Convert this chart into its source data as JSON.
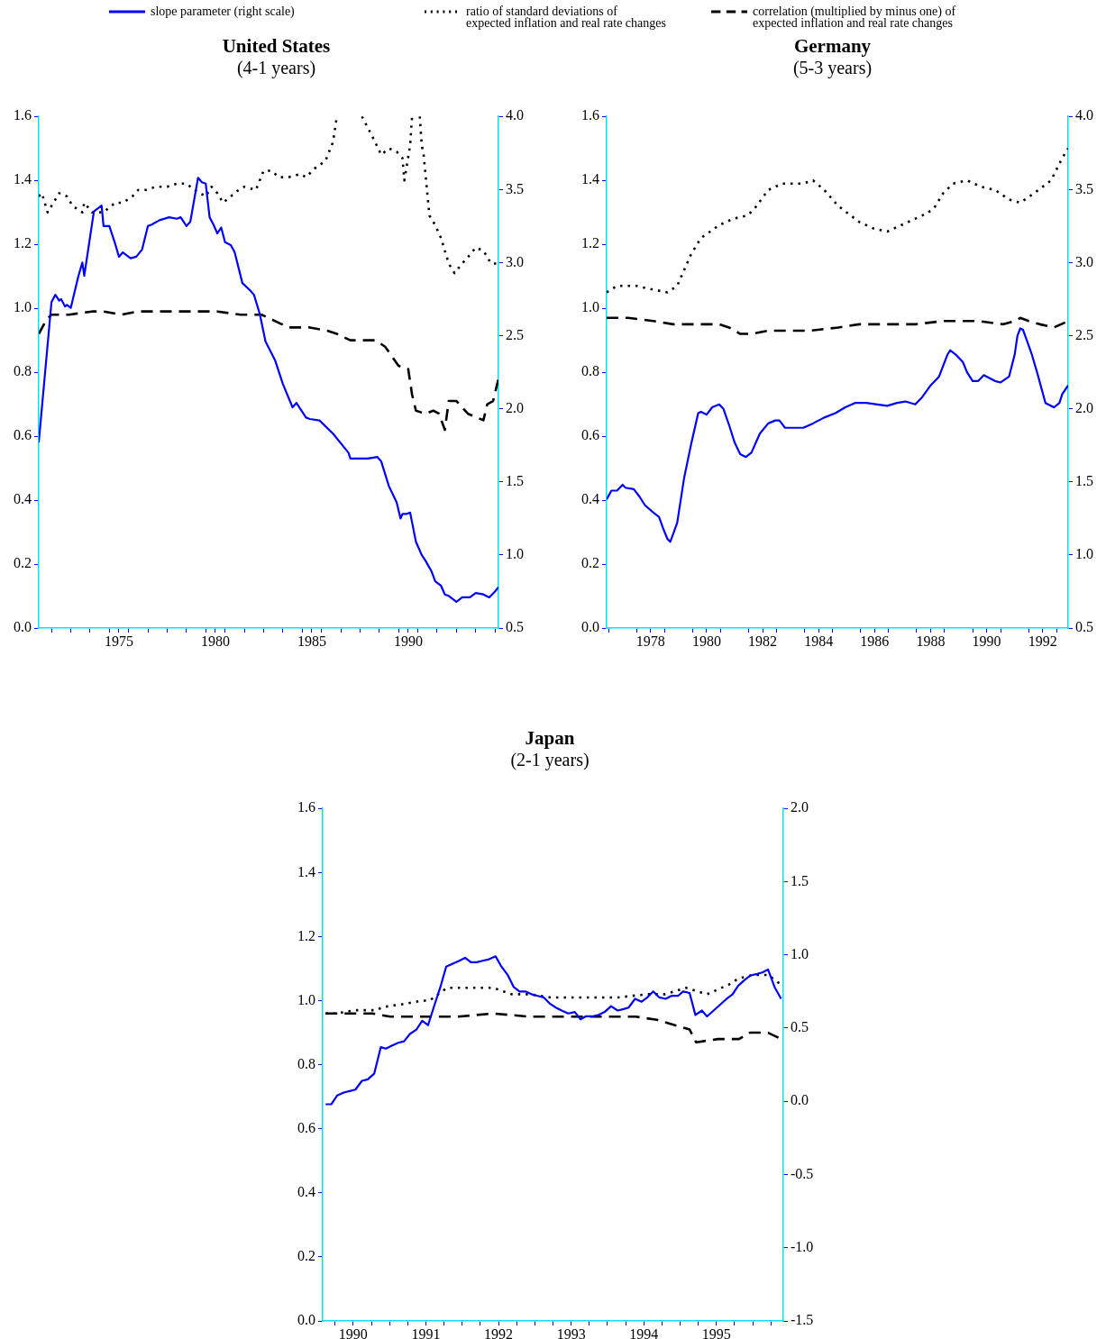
{
  "chart_data": [
    {
      "type": "line",
      "title": "United States",
      "subtitle": "(4-1 years)",
      "legend": "top",
      "marker": "none",
      "xlim": [
        1971.34,
        1995.18
      ],
      "xticks": [
        {
          "value": 1972,
          "label": null
        },
        {
          "value": 1973,
          "label": null
        },
        {
          "value": 1974,
          "label": null
        },
        {
          "value": 1975,
          "label": null
        },
        {
          "value": 1975.5,
          "label": "1975"
        },
        {
          "value": 1976,
          "label": null
        },
        {
          "value": 1977,
          "label": null
        },
        {
          "value": 1978,
          "label": null
        },
        {
          "value": 1979,
          "label": null
        },
        {
          "value": 1980,
          "label": null
        },
        {
          "value": 1980.5,
          "label": "1980"
        },
        {
          "value": 1981,
          "label": null
        },
        {
          "value": 1982,
          "label": null
        },
        {
          "value": 1983,
          "label": null
        },
        {
          "value": 1984,
          "label": null
        },
        {
          "value": 1985,
          "label": null
        },
        {
          "value": 1985.5,
          "label": "1985"
        },
        {
          "value": 1986,
          "label": null
        },
        {
          "value": 1987,
          "label": null
        },
        {
          "value": 1988,
          "label": null
        },
        {
          "value": 1989,
          "label": null
        },
        {
          "value": 1990,
          "label": null
        },
        {
          "value": 1990.5,
          "label": "1990"
        },
        {
          "value": 1991,
          "label": null
        },
        {
          "value": 1992,
          "label": null
        },
        {
          "value": 1993,
          "label": null
        },
        {
          "value": 1994,
          "label": null
        },
        {
          "value": 1995,
          "label": null
        }
      ],
      "ylim": [
        0,
        1.6
      ],
      "yticks": [
        {
          "value": 0,
          "label": "0.0"
        },
        {
          "value": 0.2,
          "label": "0.2"
        },
        {
          "value": 0.4,
          "label": "0.4"
        },
        {
          "value": 0.6,
          "label": "0.6"
        },
        {
          "value": 0.8,
          "label": "0.8"
        },
        {
          "value": 1,
          "label": "1.0"
        },
        {
          "value": 1.2,
          "label": "1.2"
        },
        {
          "value": 1.4,
          "label": "1.4"
        },
        {
          "value": 1.6,
          "label": "1.6"
        }
      ],
      "y2lim": [
        0.5,
        4
      ],
      "y2ticks": [
        {
          "value": 0.5,
          "label": "0.5"
        },
        {
          "value": 1,
          "label": "1.0"
        },
        {
          "value": 1.5,
          "label": "1.5"
        },
        {
          "value": 2,
          "label": "2.0"
        },
        {
          "value": 2.5,
          "label": "2.5"
        },
        {
          "value": 3,
          "label": "3.0"
        },
        {
          "value": 3.5,
          "label": "3.5"
        },
        {
          "value": 4,
          "label": "4.0"
        }
      ],
      "series": [
        {
          "name": "slope parameter (right scale)",
          "color": "#0000ff",
          "line_style": "solid",
          "axis": "y2",
          "x": [
            1971.34,
            1972.0,
            1972.2,
            1972.4,
            1972.5,
            1972.7,
            1972.8,
            1973.0,
            1973.4,
            1973.6,
            1973.7,
            1974.2,
            1974.6,
            1974.7,
            1975.0,
            1975.3,
            1975.5,
            1975.7,
            1976.1,
            1976.4,
            1976.7,
            1977.0,
            1977.2,
            1977.6,
            1978.1,
            1978.5,
            1978.7,
            1979.0,
            1979.2,
            1979.6,
            1979.8,
            1980.0,
            1980.2,
            1980.4,
            1980.6,
            1980.8,
            1981.0,
            1981.3,
            1981.5,
            1981.9,
            1982.3,
            1982.5,
            1982.8,
            1983.1,
            1983.6,
            1984.0,
            1984.5,
            1984.7,
            1985.2,
            1985.4,
            1985.9,
            1986.6,
            1987.4,
            1987.5,
            1988.1,
            1988.4,
            1988.9,
            1989.1,
            1989.5,
            1989.9,
            1990.1,
            1990.2,
            1990.4,
            1990.6,
            1990.9,
            1991.2,
            1991.4,
            1991.7,
            1991.9,
            1992.2,
            1992.4,
            1992.6,
            1993.0,
            1993.3,
            1993.7,
            1994.0,
            1994.4,
            1994.7,
            1995.0,
            1995.18
          ],
          "values": [
            1.77,
            2.73,
            2.78,
            2.74,
            2.75,
            2.7,
            2.71,
            2.69,
            2.91,
            3.0,
            2.91,
            3.35,
            3.39,
            3.25,
            3.25,
            3.13,
            3.04,
            3.07,
            3.03,
            3.04,
            3.09,
            3.25,
            3.26,
            3.29,
            3.31,
            3.3,
            3.31,
            3.25,
            3.28,
            3.58,
            3.55,
            3.54,
            3.31,
            3.26,
            3.2,
            3.24,
            3.14,
            3.12,
            3.07,
            2.86,
            2.81,
            2.78,
            2.65,
            2.46,
            2.33,
            2.17,
            2.01,
            2.04,
            1.94,
            1.93,
            1.92,
            1.83,
            1.7,
            1.66,
            1.66,
            1.66,
            1.67,
            1.64,
            1.47,
            1.36,
            1.25,
            1.28,
            1.28,
            1.29,
            1.09,
            1.0,
            0.96,
            0.89,
            0.82,
            0.79,
            0.73,
            0.72,
            0.68,
            0.71,
            0.71,
            0.74,
            0.73,
            0.71,
            0.75,
            0.78
          ]
        },
        {
          "name": "ratio of standard deviations of\nexpected inflation and real rate changes",
          "color": "#000000",
          "line_style": "dotted",
          "x": [
            1971.34,
            1971.5,
            1971.8,
            1972.4,
            1972.8,
            1973.1,
            1973.6,
            1973.7,
            1974.1,
            1974.7,
            1975.3,
            1975.7,
            1976.2,
            1976.5,
            1976.9,
            1977.4,
            1978.0,
            1978.5,
            1979.0,
            1979.4,
            1980.0,
            1980.3,
            1980.6,
            1980.9,
            1981.3,
            1981.7,
            1982.0,
            1982.6,
            1983.0,
            1983.4,
            1983.8,
            1984.3,
            1984.9,
            1985.2,
            1985.7,
            1986.2,
            1986.6,
            1986.8,
            1987.4,
            1988.1,
            1988.7,
            1989.1,
            1989.5,
            1989.9,
            1990.2,
            1990.3,
            1990.6,
            1990.7,
            1990.9,
            1991.1,
            1991.2,
            1991.3,
            1991.6,
            1991.9,
            1992.2,
            1992.6,
            1992.9,
            1993.3,
            1993.6,
            1994.0,
            1994.4,
            1994.8,
            1995.18
          ],
          "values": [
            1.35,
            1.36,
            1.3,
            1.36,
            1.35,
            1.32,
            1.3,
            1.33,
            1.3,
            1.3,
            1.33,
            1.33,
            1.35,
            1.37,
            1.37,
            1.38,
            1.38,
            1.39,
            1.39,
            1.37,
            1.35,
            1.38,
            1.36,
            1.33,
            1.35,
            1.37,
            1.38,
            1.37,
            1.43,
            1.43,
            1.41,
            1.41,
            1.42,
            1.41,
            1.44,
            1.46,
            1.52,
            1.6,
            null,
            1.6,
            1.53,
            1.48,
            1.5,
            1.49,
            1.47,
            1.4,
            1.51,
            1.6,
            null,
            1.6,
            1.51,
            1.48,
            1.29,
            1.26,
            1.22,
            1.14,
            1.11,
            1.14,
            1.16,
            1.19,
            1.18,
            1.14,
            1.14
          ]
        },
        {
          "name": "correlation (multiplied by minus one) of\nexpected inflation and real rate changes",
          "color": "#000000",
          "line_style": "dashed",
          "x": [
            1971.34,
            1971.7,
            1972.0,
            1972.9,
            1974.1,
            1974.7,
            1975.6,
            1976.5,
            1977.5,
            1978.6,
            1980.0,
            1980.6,
            1981.8,
            1982.9,
            1983.6,
            1984.3,
            1985.4,
            1986.3,
            1986.8,
            1987.5,
            1988.8,
            1989.3,
            1990.0,
            1990.5,
            1990.7,
            1990.9,
            1991.4,
            1991.8,
            1992.1,
            1992.4,
            1992.6,
            1993.0,
            1993.6,
            1994.4,
            1994.6,
            1994.9,
            1995.18
          ],
          "values": [
            0.92,
            0.96,
            0.98,
            0.98,
            0.99,
            0.99,
            0.98,
            0.99,
            0.99,
            0.99,
            0.99,
            0.99,
            0.98,
            0.98,
            0.96,
            0.94,
            0.94,
            0.93,
            0.92,
            0.9,
            0.9,
            0.88,
            0.82,
            0.81,
            0.73,
            0.68,
            0.67,
            0.68,
            0.67,
            0.62,
            0.71,
            0.71,
            0.67,
            0.65,
            0.7,
            0.71,
            0.78
          ]
        }
      ]
    },
    {
      "type": "line",
      "title": "Germany",
      "subtitle": "(5-3 years)",
      "marker": "none",
      "xlim": [
        1976.93,
        1993.41
      ],
      "xticks": [
        {
          "value": 1977,
          "label": null
        },
        {
          "value": 1978,
          "label": null
        },
        {
          "value": 1978.5,
          "label": "1978"
        },
        {
          "value": 1979,
          "label": null
        },
        {
          "value": 1980,
          "label": null
        },
        {
          "value": 1980.5,
          "label": "1980"
        },
        {
          "value": 1981,
          "label": null
        },
        {
          "value": 1982,
          "label": null
        },
        {
          "value": 1982.5,
          "label": "1982"
        },
        {
          "value": 1983,
          "label": null
        },
        {
          "value": 1984,
          "label": null
        },
        {
          "value": 1984.5,
          "label": "1984"
        },
        {
          "value": 1985,
          "label": null
        },
        {
          "value": 1986,
          "label": null
        },
        {
          "value": 1986.5,
          "label": "1986"
        },
        {
          "value": 1987,
          "label": null
        },
        {
          "value": 1988,
          "label": null
        },
        {
          "value": 1988.5,
          "label": "1988"
        },
        {
          "value": 1989,
          "label": null
        },
        {
          "value": 1990,
          "label": null
        },
        {
          "value": 1990.5,
          "label": "1990"
        },
        {
          "value": 1991,
          "label": null
        },
        {
          "value": 1992,
          "label": null
        },
        {
          "value": 1992.5,
          "label": "1992"
        },
        {
          "value": 1993,
          "label": null
        }
      ],
      "ylim": [
        0,
        1.6
      ],
      "yticks": [
        {
          "value": 0,
          "label": "0.0"
        },
        {
          "value": 0.2,
          "label": "0.2"
        },
        {
          "value": 0.4,
          "label": "0.4"
        },
        {
          "value": 0.6,
          "label": "0.6"
        },
        {
          "value": 0.8,
          "label": "0.8"
        },
        {
          "value": 1,
          "label": "1.0"
        },
        {
          "value": 1.2,
          "label": "1.2"
        },
        {
          "value": 1.4,
          "label": "1.4"
        },
        {
          "value": 1.6,
          "label": "1.6"
        }
      ],
      "y2lim": [
        0.5,
        4
      ],
      "y2ticks": [
        {
          "value": 0.5,
          "label": "0.5"
        },
        {
          "value": 1,
          "label": "1.0"
        },
        {
          "value": 1.5,
          "label": "1.5"
        },
        {
          "value": 2,
          "label": "2.0"
        },
        {
          "value": 2.5,
          "label": "2.5"
        },
        {
          "value": 3,
          "label": "3.0"
        },
        {
          "value": 3.5,
          "label": "3.5"
        },
        {
          "value": 4,
          "label": "4.0"
        }
      ],
      "series": [
        {
          "color": "#0000ff",
          "line_style": "solid",
          "axis": "y2",
          "x": [
            1976.93,
            1977.1,
            1977.3,
            1977.5,
            1977.6,
            1977.9,
            1978.1,
            1978.3,
            1978.6,
            1978.8,
            1978.95,
            1979.1,
            1979.2,
            1979.3,
            1979.45,
            1979.7,
            1979.95,
            1980.2,
            1980.3,
            1980.5,
            1980.7,
            1980.95,
            1981.1,
            1981.3,
            1981.5,
            1981.7,
            1981.9,
            1982.1,
            1982.4,
            1982.7,
            1982.95,
            1983.1,
            1983.3,
            1983.7,
            1983.95,
            1984.3,
            1984.7,
            1985.1,
            1985.45,
            1985.8,
            1986.2,
            1986.6,
            1986.95,
            1987.3,
            1987.6,
            1987.95,
            1988.2,
            1988.5,
            1988.8,
            1989.1,
            1989.2,
            1989.4,
            1989.65,
            1989.8,
            1990.0,
            1990.2,
            1990.4,
            1990.5,
            1990.8,
            1991.0,
            1991.3,
            1991.5,
            1991.6,
            1991.7,
            1991.8,
            1992.1,
            1992.3,
            1992.6,
            1992.9,
            1993.1,
            1993.2,
            1993.41
          ],
          "values": [
            1.38,
            1.44,
            1.44,
            1.48,
            1.46,
            1.45,
            1.4,
            1.34,
            1.29,
            1.26,
            1.18,
            1.11,
            1.09,
            1.14,
            1.22,
            1.53,
            1.76,
            1.97,
            1.98,
            1.96,
            2.01,
            2.03,
            2.0,
            1.89,
            1.77,
            1.69,
            1.67,
            1.7,
            1.83,
            1.9,
            1.92,
            1.92,
            1.87,
            1.87,
            1.87,
            1.9,
            1.94,
            1.97,
            2.01,
            2.04,
            2.04,
            2.03,
            2.02,
            2.04,
            2.05,
            2.03,
            2.08,
            2.16,
            2.22,
            2.37,
            2.4,
            2.37,
            2.32,
            2.25,
            2.19,
            2.19,
            2.23,
            2.22,
            2.19,
            2.18,
            2.22,
            2.37,
            2.5,
            2.55,
            2.54,
            2.38,
            2.25,
            2.04,
            2.01,
            2.04,
            2.1,
            2.16
          ]
        },
        {
          "color": "#000000",
          "line_style": "dotted",
          "x": [
            1976.93,
            1977.3,
            1978.0,
            1978.5,
            1979.1,
            1979.45,
            1979.95,
            1980.3,
            1980.95,
            1981.45,
            1981.95,
            1982.2,
            1982.7,
            1983.2,
            1983.95,
            1984.3,
            1984.7,
            1985.2,
            1985.95,
            1986.45,
            1986.95,
            1987.7,
            1988.2,
            1988.6,
            1988.95,
            1989.3,
            1989.8,
            1990.3,
            1990.8,
            1991.3,
            1991.7,
            1992.2,
            1992.8,
            1993.2,
            1993.41
          ],
          "values": [
            1.05,
            1.07,
            1.07,
            1.06,
            1.05,
            1.07,
            1.17,
            1.22,
            1.26,
            1.28,
            1.29,
            1.31,
            1.37,
            1.39,
            1.39,
            1.4,
            1.37,
            1.32,
            1.27,
            1.25,
            1.24,
            1.27,
            1.29,
            1.31,
            1.36,
            1.39,
            1.4,
            1.38,
            1.37,
            1.34,
            1.33,
            1.36,
            1.4,
            1.47,
            1.5
          ]
        },
        {
          "color": "#000000",
          "line_style": "dashed",
          "x": [
            1976.93,
            1977.7,
            1978.6,
            1979.3,
            1980.2,
            1980.95,
            1981.3,
            1981.7,
            1982.1,
            1982.7,
            1983.3,
            1984.2,
            1985.2,
            1985.95,
            1986.95,
            1987.95,
            1988.95,
            1989.5,
            1990.2,
            1991.1,
            1991.5,
            1991.7,
            1992.0,
            1992.4,
            1992.9,
            1993.41
          ],
          "values": [
            0.97,
            0.97,
            0.96,
            0.95,
            0.95,
            0.95,
            0.94,
            0.92,
            0.92,
            0.93,
            0.93,
            0.93,
            0.94,
            0.95,
            0.95,
            0.95,
            0.96,
            0.96,
            0.96,
            0.95,
            0.96,
            0.97,
            0.96,
            0.95,
            0.94,
            0.96
          ]
        }
      ]
    },
    {
      "type": "line",
      "title": "Japan",
      "subtitle": "(2-1 years)",
      "marker": "none",
      "xlim": [
        1990.08,
        1996.42
      ],
      "xticks": [
        {
          "value": 1990.25,
          "label": null
        },
        {
          "value": 1990.5,
          "label": "1990"
        },
        {
          "value": 1990.75,
          "label": null
        },
        {
          "value": 1991,
          "label": null
        },
        {
          "value": 1991.25,
          "label": null
        },
        {
          "value": 1991.5,
          "label": "1991"
        },
        {
          "value": 1991.75,
          "label": null
        },
        {
          "value": 1992,
          "label": null
        },
        {
          "value": 1992.25,
          "label": null
        },
        {
          "value": 1992.5,
          "label": "1992"
        },
        {
          "value": 1992.75,
          "label": null
        },
        {
          "value": 1993,
          "label": null
        },
        {
          "value": 1993.25,
          "label": null
        },
        {
          "value": 1993.5,
          "label": "1993"
        },
        {
          "value": 1993.75,
          "label": null
        },
        {
          "value": 1994,
          "label": null
        },
        {
          "value": 1994.25,
          "label": null
        },
        {
          "value": 1994.5,
          "label": "1994"
        },
        {
          "value": 1994.75,
          "label": null
        },
        {
          "value": 1995,
          "label": null
        },
        {
          "value": 1995.25,
          "label": null
        },
        {
          "value": 1995.5,
          "label": "1995"
        },
        {
          "value": 1995.75,
          "label": null
        },
        {
          "value": 1996,
          "label": null
        },
        {
          "value": 1996.25,
          "label": null
        }
      ],
      "ylim": [
        0,
        1.6
      ],
      "yticks": [
        {
          "value": 0,
          "label": "0.0"
        },
        {
          "value": 0.2,
          "label": "0.2"
        },
        {
          "value": 0.4,
          "label": "0.4"
        },
        {
          "value": 0.6,
          "label": "0.6"
        },
        {
          "value": 0.8,
          "label": "0.8"
        },
        {
          "value": 1,
          "label": "1.0"
        },
        {
          "value": 1.2,
          "label": "1.2"
        },
        {
          "value": 1.4,
          "label": "1.4"
        },
        {
          "value": 1.6,
          "label": "1.6"
        }
      ],
      "y2lim": [
        -1.5,
        2
      ],
      "y2ticks": [
        {
          "value": -1.5,
          "label": "-1.5"
        },
        {
          "value": -1,
          "label": "-1.0"
        },
        {
          "value": -0.5,
          "label": "-0.5"
        },
        {
          "value": 0,
          "label": "0.0"
        },
        {
          "value": 0.5,
          "label": "0.5"
        },
        {
          "value": 1,
          "label": "1.0"
        },
        {
          "value": 1.5,
          "label": "1.5"
        },
        {
          "value": 2,
          "label": "2.0"
        }
      ],
      "series": [
        {
          "color": "#0000ff",
          "line_style": "solid",
          "axis": "y2",
          "x": [
            1990.12,
            1990.2,
            1990.28,
            1990.37,
            1990.45,
            1990.53,
            1990.62,
            1990.7,
            1990.79,
            1990.88,
            1990.95,
            1991.03,
            1991.12,
            1991.2,
            1991.28,
            1991.37,
            1991.45,
            1991.53,
            1991.62,
            1991.7,
            1991.78,
            1991.87,
            1991.96,
            1992.04,
            1992.12,
            1992.2,
            1992.28,
            1992.37,
            1992.46,
            1992.54,
            1992.63,
            1992.71,
            1992.79,
            1992.87,
            1992.96,
            1993.04,
            1993.12,
            1993.2,
            1993.29,
            1993.37,
            1993.46,
            1993.55,
            1993.63,
            1993.7,
            1993.79,
            1993.88,
            1993.96,
            1994.05,
            1994.14,
            1994.22,
            1994.29,
            1994.38,
            1994.47,
            1994.55,
            1994.63,
            1994.71,
            1994.8,
            1994.88,
            1994.97,
            1995.04,
            1995.13,
            1995.21,
            1995.3,
            1995.37,
            1995.46,
            1995.55,
            1995.64,
            1995.72,
            1995.8,
            1995.89,
            1995.97,
            1996.06,
            1996.13,
            1996.21,
            1996.3,
            1996.39
          ],
          "values": [
            -0.02,
            -0.02,
            0.04,
            0.06,
            0.07,
            0.08,
            0.14,
            0.15,
            0.19,
            0.37,
            0.36,
            0.38,
            0.4,
            0.41,
            0.46,
            0.49,
            0.55,
            0.52,
            0.66,
            0.78,
            0.92,
            0.94,
            0.96,
            0.98,
            0.95,
            0.95,
            0.96,
            0.97,
            0.99,
            0.92,
            0.86,
            0.78,
            0.75,
            0.75,
            0.73,
            0.72,
            0.71,
            0.67,
            0.64,
            0.62,
            0.6,
            0.61,
            0.56,
            0.58,
            0.58,
            0.59,
            0.61,
            0.65,
            0.62,
            0.63,
            0.64,
            0.7,
            0.68,
            0.71,
            0.75,
            0.71,
            0.7,
            0.72,
            0.72,
            0.75,
            0.74,
            0.59,
            0.62,
            0.58,
            0.62,
            0.66,
            0.7,
            0.73,
            0.79,
            0.83,
            0.86,
            0.87,
            0.88,
            0.9,
            0.78,
            0.7
          ]
        },
        {
          "color": "#000000",
          "line_style": "dotted",
          "x": [
            1990.12,
            1990.27,
            1990.52,
            1990.67,
            1990.81,
            1990.91,
            1991.21,
            1991.45,
            1991.55,
            1991.79,
            1991.99,
            1992.24,
            1992.43,
            1992.68,
            1992.92,
            1993.22,
            1993.66,
            1994.15,
            1994.54,
            1994.79,
            1995.08,
            1995.37,
            1995.67,
            1995.81,
            1996.01,
            1996.21,
            1996.39
          ],
          "values": [
            0.96,
            0.96,
            0.97,
            0.97,
            0.97,
            0.98,
            0.99,
            1.0,
            1.0,
            1.04,
            1.04,
            1.04,
            1.04,
            1.02,
            1.02,
            1.01,
            1.01,
            1.01,
            1.02,
            1.02,
            1.04,
            1.02,
            1.05,
            1.07,
            1.08,
            1.08,
            1.05
          ]
        },
        {
          "color": "#000000",
          "line_style": "dashed",
          "x": [
            1990.12,
            1990.47,
            1990.76,
            1991.01,
            1991.45,
            1991.94,
            1992.43,
            1992.92,
            1993.41,
            1994.39,
            1994.68,
            1994.98,
            1995.13,
            1995.22,
            1995.52,
            1995.81,
            1995.96,
            1996.21,
            1996.39
          ],
          "values": [
            0.96,
            0.96,
            0.96,
            0.95,
            0.95,
            0.95,
            0.96,
            0.95,
            0.95,
            0.95,
            0.94,
            0.92,
            0.91,
            0.87,
            0.88,
            0.88,
            0.9,
            0.9,
            0.88
          ]
        }
      ]
    }
  ]
}
